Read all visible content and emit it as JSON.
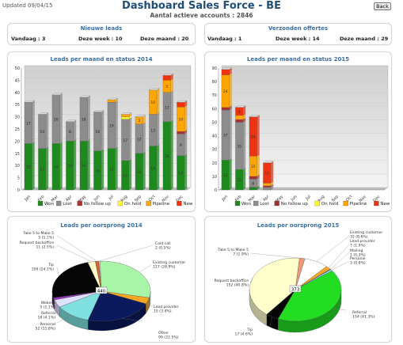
{
  "header": {
    "updated": "Updated 09/04/15",
    "title": "Dashboard Sales Force   -   BE",
    "subtitle": "Aantal actieve accounts :  2846",
    "back_label": "Back"
  },
  "stats": [
    {
      "title": "Nieuwe leads",
      "today_label": "Vandaag :",
      "today_value": "3",
      "week_label": "Deze week :",
      "week_value": "10",
      "month_label": "Deze maand",
      "month_value": ": 20"
    },
    {
      "title": "Verzonden offertes",
      "today_label": "Vandaag :",
      "today_value": "1",
      "week_label": "Deze week :",
      "week_value": "14",
      "month_label": "Deze maand",
      "month_value": ":  29"
    }
  ],
  "colors": {
    "Won": "#1e8a1e",
    "Lost": "#8c8c8c",
    "No follow up": "#a83232",
    "On hold": "#ffff33",
    "Pipeline": "#ffa500",
    "New": "#ee3311"
  },
  "legend": [
    "Won",
    "Lost",
    "No follow up",
    "On hold",
    "Pipeline",
    "New"
  ],
  "chart_data": [
    {
      "type": "bar",
      "title": "Leads per maand en status 2014",
      "categories": [
        "Jan",
        "Feb",
        "Mar",
        "Apr",
        "May",
        "Jun",
        "Jul",
        "Aug",
        "Sep",
        "Oct",
        "Nov",
        "Dec"
      ],
      "ylim": [
        0,
        50
      ],
      "yticks": [
        0,
        5,
        10,
        15,
        20,
        25,
        30,
        35,
        40,
        45,
        50
      ],
      "series": [
        {
          "name": "Won",
          "values": [
            19,
            17,
            19,
            20,
            20,
            16,
            17,
            12,
            15,
            18,
            28,
            14
          ]
        },
        {
          "name": "Lost",
          "values": [
            17,
            14,
            20,
            8,
            18,
            16,
            19,
            17,
            12,
            13,
            12,
            9
          ]
        },
        {
          "name": "No follow up",
          "values": [
            0,
            0,
            0,
            0,
            0,
            0,
            0,
            0,
            0,
            0,
            0,
            1
          ]
        },
        {
          "name": "On hold",
          "values": [
            0,
            0,
            0,
            0,
            0,
            0,
            0,
            1,
            0,
            0,
            0,
            0
          ]
        },
        {
          "name": "Pipeline",
          "values": [
            0,
            0,
            0,
            0,
            0,
            0,
            1,
            1,
            3,
            10,
            5,
            10
          ]
        },
        {
          "name": "New",
          "values": [
            0,
            0,
            0,
            0,
            0,
            0,
            0,
            0,
            0,
            0,
            2,
            2
          ]
        }
      ],
      "data_labels": {
        "Won": [
          19,
          17,
          19,
          20,
          20,
          16,
          17,
          12,
          15,
          18,
          28,
          14
        ],
        "Lost": [
          17,
          14,
          20,
          8,
          18,
          16,
          19,
          17,
          12,
          13,
          12,
          9
        ],
        "Pipeline": [
          null,
          null,
          null,
          null,
          null,
          null,
          null,
          null,
          3,
          10,
          5,
          10
        ]
      }
    },
    {
      "type": "bar",
      "title": "Leads per maand en status 2015",
      "categories": [
        "Jan",
        "Feb",
        "Mar",
        "Apr",
        "May",
        "Jun",
        "Jul",
        "Aug",
        "Sep",
        "Oct",
        "Nov",
        "Dec"
      ],
      "ylim": [
        0,
        90
      ],
      "yticks": [
        0,
        10,
        20,
        30,
        40,
        50,
        60,
        70,
        80,
        90
      ],
      "series": [
        {
          "name": "Won",
          "values": [
            22,
            15,
            2,
            0,
            0,
            0,
            0,
            0,
            0,
            0,
            0,
            0
          ]
        },
        {
          "name": "Lost",
          "values": [
            37,
            35,
            6,
            2,
            0,
            0,
            0,
            0,
            0,
            0,
            0,
            0
          ]
        },
        {
          "name": "No follow up",
          "values": [
            2,
            2,
            2,
            1,
            0,
            0,
            0,
            0,
            0,
            0,
            0,
            0
          ]
        },
        {
          "name": "On hold",
          "values": [
            0,
            0,
            0,
            0,
            0,
            0,
            0,
            0,
            0,
            0,
            0,
            0
          ]
        },
        {
          "name": "Pipeline",
          "values": [
            24,
            3,
            15,
            2,
            0,
            0,
            0,
            0,
            0,
            0,
            0,
            0
          ]
        },
        {
          "name": "New",
          "values": [
            4,
            6,
            29,
            15,
            0,
            0,
            0,
            0,
            0,
            0,
            0,
            0
          ]
        }
      ],
      "data_labels": {
        "Won": [
          22,
          15,
          null,
          null,
          null,
          null,
          null,
          null,
          null,
          null,
          null,
          null
        ],
        "Lost": [
          37,
          35,
          6,
          null,
          null,
          null,
          null,
          null,
          null,
          null,
          null,
          null
        ],
        "Pipeline": [
          24,
          null,
          15,
          null,
          null,
          null,
          null,
          null,
          null,
          null,
          null,
          null
        ],
        "New": [
          null,
          6,
          29,
          15,
          null,
          null,
          null,
          null,
          null,
          null,
          null,
          null
        ]
      }
    },
    {
      "type": "pie",
      "title": "Leads per oorsprong 2014",
      "total": "440",
      "slices": [
        {
          "label": "Cold call",
          "value": 2,
          "pct": "0.5%",
          "color": "#dddddd"
        },
        {
          "label": "Existing customer",
          "value": 127,
          "pct": "28.9%",
          "color": "#a8f5a8"
        },
        {
          "label": "Lead provider",
          "value": 15,
          "pct": "3.4%",
          "color": "#f5a623"
        },
        {
          "label": "Other",
          "value": 99,
          "pct": "22.5%",
          "color": "#0a1a5c"
        },
        {
          "label": "Personal",
          "value": 52,
          "pct": "11.8%",
          "color": "#80e0e0"
        },
        {
          "label": "Referral",
          "value": 18,
          "pct": "4.1%",
          "color": "#e0e0ff"
        },
        {
          "label": "Website",
          "value": 5,
          "pct": "1.1%",
          "color": "#9933cc"
        },
        {
          "label": "Tip",
          "value": 106,
          "pct": "24.1%",
          "color": "#050505"
        },
        {
          "label": "Request backoffice",
          "value": 11,
          "pct": "2.5%",
          "color": "#ffffcc"
        },
        {
          "label": "Take 5 to Make 5",
          "value": 5,
          "pct": "1.1%",
          "color": "#cc6633"
        }
      ]
    },
    {
      "type": "pie",
      "title": "Leads per oorsprong 2015",
      "total": "373",
      "slices": [
        {
          "label": "Existing customer",
          "value": 32,
          "pct": "8.6%",
          "color": "#ffffff"
        },
        {
          "label": "Lead provider",
          "value": 7,
          "pct": "1.9%",
          "color": "#f5a623"
        },
        {
          "label": "Mailing",
          "value": 1,
          "pct": "0.3%",
          "color": "#9933cc"
        },
        {
          "label": "Personal",
          "value": 3,
          "pct": "0.8%",
          "color": "#80e0e0"
        },
        {
          "label": "Referral",
          "value": 154,
          "pct": "41.3%",
          "color": "#22dd22"
        },
        {
          "label": "Tip",
          "value": 17,
          "pct": "4.6%",
          "color": "#050505"
        },
        {
          "label": "Request backoffice",
          "value": 152,
          "pct": "40.8%",
          "color": "#ffffcc"
        },
        {
          "label": "Take 5 to Make 5",
          "value": 7,
          "pct": "1.9%",
          "color": "#ee9977"
        }
      ]
    }
  ]
}
